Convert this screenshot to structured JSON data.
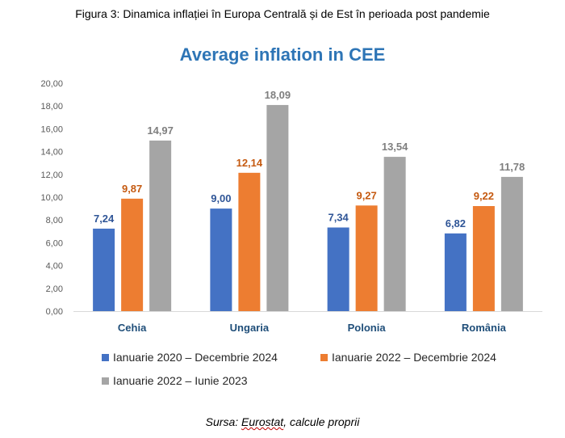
{
  "caption": "Figura 3: Dinamica inflației în Europa Centrală și de Est în perioada post pandemie",
  "source": {
    "prefix": "Sursa: ",
    "underlined": "Eurostat",
    "suffix": ", calcule proprii"
  },
  "colors": {
    "title": "#2e75b6",
    "series": [
      "#4472c4",
      "#ed7d31",
      "#a5a5a5"
    ],
    "label_colors": [
      "#2f5597",
      "#c55a11",
      "#7f7f7f"
    ],
    "axis_text": "#595959",
    "category_text": "#1f4e79"
  },
  "chart_data": {
    "type": "bar",
    "title": "Average inflation in CEE",
    "xlabel": "",
    "ylabel": "",
    "ylim": [
      0,
      20
    ],
    "yticks": [
      "0,00",
      "2,00",
      "4,00",
      "6,00",
      "8,00",
      "10,00",
      "12,00",
      "14,00",
      "16,00",
      "18,00",
      "20,00"
    ],
    "grid": false,
    "legend_position": "bottom",
    "categories": [
      "Cehia",
      "Ungaria",
      "Polonia",
      "România"
    ],
    "series": [
      {
        "name": "Ianuarie 2020 – Decembrie 2024",
        "values": [
          7.24,
          9.0,
          7.34,
          6.82
        ],
        "labels": [
          "7,24",
          "9,00",
          "7,34",
          "6,82"
        ]
      },
      {
        "name": "Ianuarie 2022 – Decembrie 2024",
        "values": [
          9.87,
          12.14,
          9.27,
          9.22
        ],
        "labels": [
          "9,87",
          "12,14",
          "9,27",
          "9,22"
        ]
      },
      {
        "name": "Ianuarie 2022 – Iunie 2023",
        "values": [
          14.97,
          18.09,
          13.54,
          11.78
        ],
        "labels": [
          "14,97",
          "18,09",
          "13,54",
          "11,78"
        ]
      }
    ]
  }
}
